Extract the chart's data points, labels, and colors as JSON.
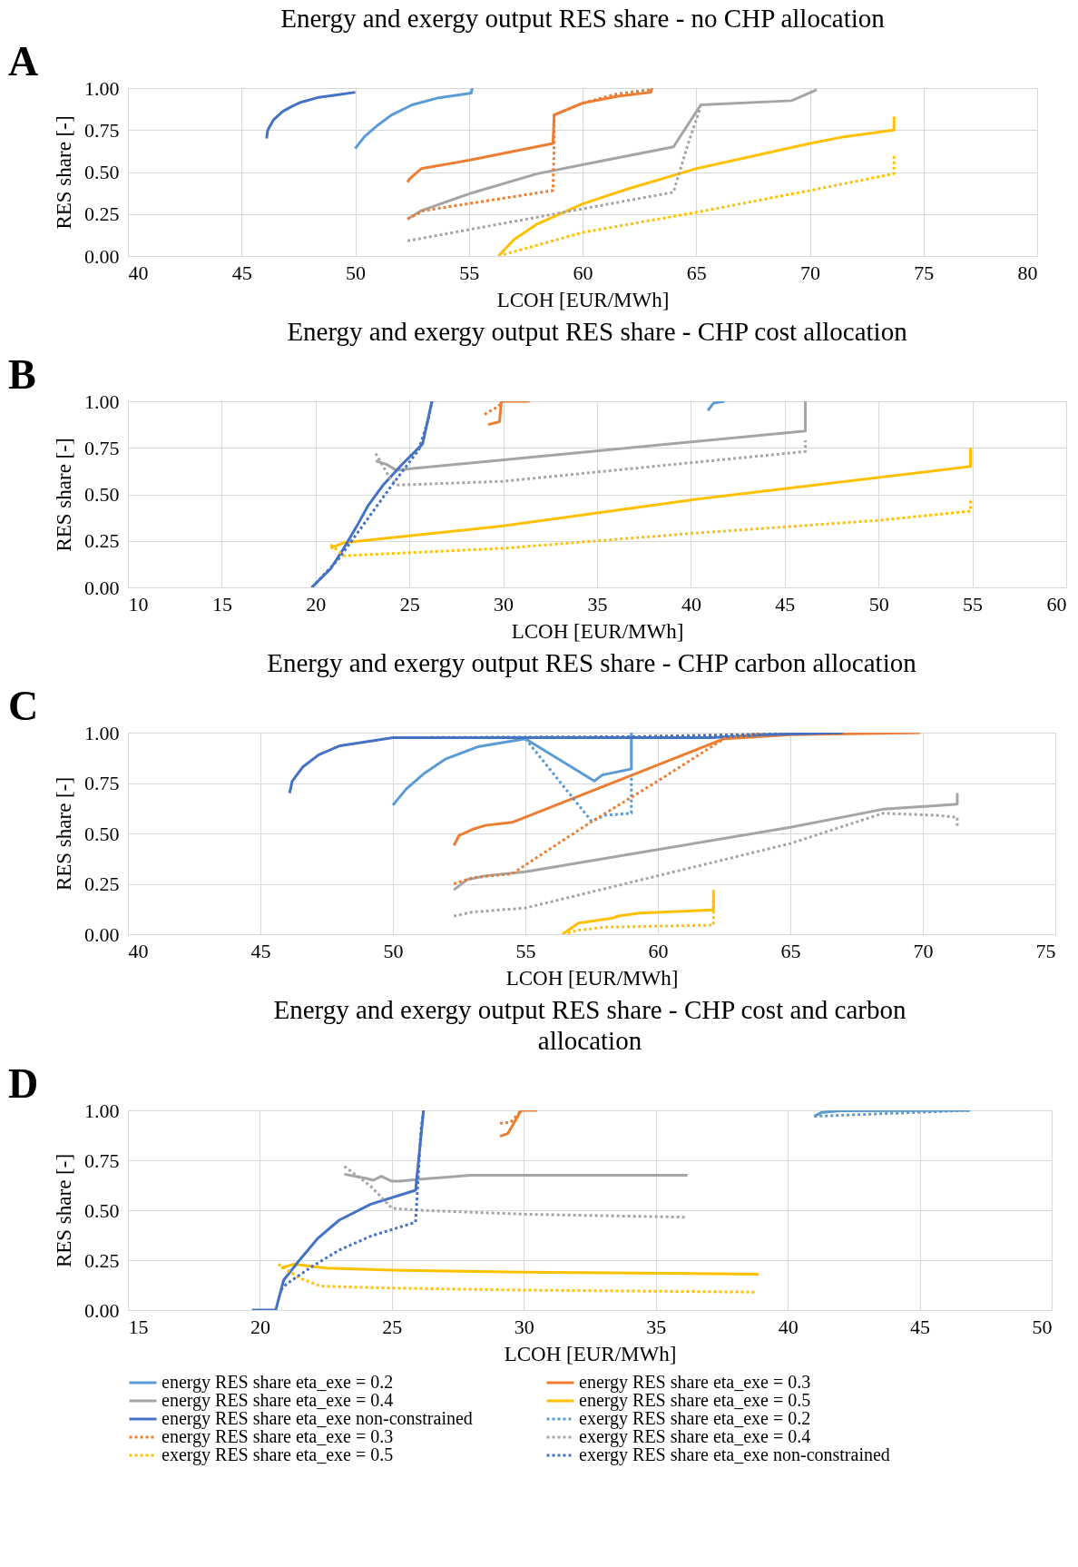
{
  "chart_data": [
    {
      "type": "line",
      "title": "Energy and exergy output RES share - no CHP allocation",
      "xlabel": "LCOH [EUR/MWh]",
      "ylabel": "RES share [-]",
      "annotations": [
        "A"
      ],
      "xlim": [
        40,
        80
      ],
      "xticks": [
        40,
        45,
        50,
        55,
        60,
        65,
        70,
        75,
        80
      ],
      "ylim": [
        0,
        1
      ],
      "yticks": [
        {
          "value": 0,
          "label": "0.00"
        },
        {
          "value": 0.25,
          "label": "0.25"
        },
        {
          "value": 0.5,
          "label": "0.50"
        },
        {
          "value": 0.75,
          "label": "0.75"
        },
        {
          "value": 1,
          "label": "1.00"
        }
      ],
      "grid": true,
      "legend": false,
      "series": [
        {
          "color": "#5b9bd5",
          "line_style": "solid",
          "x": [
            50.0,
            50.4,
            51.0,
            51.6,
            52.5,
            53.6,
            55.1,
            55.15
          ],
          "values": [
            0.64,
            0.71,
            0.78,
            0.84,
            0.9,
            0.94,
            0.97,
            1.0
          ]
        },
        {
          "color": "#ed7d31",
          "line_style": "solid",
          "x": [
            52.3,
            52.4,
            52.9,
            55,
            58.7,
            58.75,
            60,
            61.5,
            63,
            63.05
          ],
          "values": [
            0.44,
            0.46,
            0.52,
            0.57,
            0.67,
            0.84,
            0.91,
            0.95,
            0.975,
            1.0
          ]
        },
        {
          "color": "#a5a5a5",
          "line_style": "solid",
          "x": [
            52.3,
            52.9,
            55,
            58,
            61,
            64,
            65.2,
            69.2,
            70.3
          ],
          "values": [
            0.22,
            0.27,
            0.37,
            0.49,
            0.57,
            0.65,
            0.9,
            0.925,
            0.99
          ]
        },
        {
          "color": "#ffc000",
          "line_style": "solid",
          "x": [
            56.3,
            57,
            58,
            60,
            62,
            65,
            70,
            71.5,
            73.7,
            73.7
          ],
          "values": [
            0,
            0.1,
            0.19,
            0.31,
            0.4,
            0.52,
            0.67,
            0.71,
            0.75,
            0.83
          ]
        },
        {
          "color": "#4472c4",
          "line_style": "solid",
          "x": [
            46.1,
            46.15,
            46.4,
            46.8,
            47.2,
            47.6,
            48.4,
            49.2,
            50.0
          ],
          "values": [
            0.7,
            0.75,
            0.81,
            0.86,
            0.89,
            0.915,
            0.945,
            0.96,
            0.975
          ]
        },
        {
          "color": "#ed7d31",
          "line_style": "dotted",
          "x": [
            52.3,
            53,
            58.7,
            58.75,
            58.75,
            60,
            61.5,
            63,
            63.05
          ],
          "values": [
            0.22,
            0.27,
            0.39,
            0.67,
            0.84,
            0.91,
            0.965,
            0.99,
            1.0
          ]
        },
        {
          "color": "#a5a5a5",
          "line_style": "dotted",
          "x": [
            52.3,
            64,
            64.6,
            65.2
          ],
          "values": [
            0.09,
            0.38,
            0.65,
            0.89
          ]
        },
        {
          "color": "#ffc000",
          "line_style": "dotted",
          "x": [
            56.3,
            60,
            65,
            70,
            73.7,
            73.7
          ],
          "values": [
            0,
            0.14,
            0.26,
            0.39,
            0.49,
            0.61
          ]
        }
      ]
    },
    {
      "type": "line",
      "title": "Energy and exergy output RES share -  CHP cost allocation",
      "xlabel": "LCOH [EUR/MWh]",
      "ylabel": "RES share [-]",
      "annotations": [
        "B"
      ],
      "xlim": [
        10,
        60
      ],
      "xticks": [
        10,
        15,
        20,
        25,
        30,
        35,
        40,
        45,
        50,
        55,
        60
      ],
      "ylim": [
        0,
        1
      ],
      "yticks": [
        {
          "value": 0,
          "label": "0.00"
        },
        {
          "value": 0.25,
          "label": "0.25"
        },
        {
          "value": 0.5,
          "label": "0.50"
        },
        {
          "value": 0.75,
          "label": "0.75"
        },
        {
          "value": 1,
          "label": "1.00"
        }
      ],
      "grid": true,
      "legend": false,
      "series": [
        {
          "color": "#5b9bd5",
          "line_style": "solid",
          "x": [
            40.9,
            41.2,
            41.8
          ],
          "values": [
            0.95,
            0.99,
            1.0
          ]
        },
        {
          "color": "#ed7d31",
          "line_style": "solid",
          "x": [
            29.2,
            29.8,
            29.9,
            31.4
          ],
          "values": [
            0.875,
            0.89,
            1.0,
            1.0
          ]
        },
        {
          "color": "#a5a5a5",
          "line_style": "solid",
          "x": [
            23.2,
            23.8,
            24.3,
            46.1,
            46.1
          ],
          "values": [
            0.68,
            0.66,
            0.63,
            0.84,
            1.0
          ]
        },
        {
          "color": "#ffc000",
          "line_style": "solid",
          "x": [
            20.8,
            21.0,
            21.5,
            30,
            40,
            54.9,
            54.9
          ],
          "values": [
            0.21,
            0.22,
            0.24,
            0.33,
            0.47,
            0.65,
            0.75
          ]
        },
        {
          "color": "#4472c4",
          "line_style": "solid",
          "x": [
            19.8,
            20.8,
            21.5,
            22.2,
            22.8,
            23.6,
            24.6,
            25.7,
            26.2
          ],
          "values": [
            0,
            0.1,
            0.21,
            0.33,
            0.44,
            0.55,
            0.66,
            0.77,
            1.0
          ]
        },
        {
          "color": "#ed7d31",
          "line_style": "dotted",
          "x": [
            29.0,
            29.7,
            30.0
          ],
          "values": [
            0.93,
            0.97,
            1.0
          ]
        },
        {
          "color": "#a5a5a5",
          "line_style": "dotted",
          "x": [
            23.2,
            24,
            24.4,
            30,
            40,
            46.1,
            46.1
          ],
          "values": [
            0.72,
            0.58,
            0.55,
            0.57,
            0.67,
            0.73,
            0.79
          ]
        },
        {
          "color": "#ffc000",
          "line_style": "dotted",
          "x": [
            20.8,
            21.5,
            30,
            40,
            50,
            54.9,
            54.9
          ],
          "values": [
            0.23,
            0.17,
            0.21,
            0.29,
            0.36,
            0.41,
            0.47
          ]
        },
        {
          "color": "#4472c4",
          "line_style": "dotted",
          "x": [
            19.8,
            21.2,
            22.5,
            24,
            25.5,
            26.0,
            26.2
          ],
          "values": [
            0,
            0.15,
            0.33,
            0.54,
            0.74,
            0.9,
            1.0
          ]
        }
      ]
    },
    {
      "type": "line",
      "title": "Energy and exergy output RES share -  CHP carbon allocation",
      "xlabel": "LCOH [EUR/MWh]",
      "ylabel": "RES share [-]",
      "annotations": [
        "C"
      ],
      "xlim": [
        40,
        75
      ],
      "xticks": [
        40,
        45,
        50,
        55,
        60,
        65,
        70,
        75
      ],
      "ylim": [
        0,
        1
      ],
      "yticks": [
        {
          "value": 0,
          "label": "0.00"
        },
        {
          "value": 0.25,
          "label": "0.25"
        },
        {
          "value": 0.5,
          "label": "0.50"
        },
        {
          "value": 0.75,
          "label": "0.75"
        },
        {
          "value": 1,
          "label": "1.00"
        }
      ],
      "grid": true,
      "legend": false,
      "series": [
        {
          "color": "#5b9bd5",
          "line_style": "solid",
          "x": [
            50,
            50.5,
            51.2,
            52,
            53.2,
            55.0,
            57.6,
            57.9,
            59.0,
            59.0
          ],
          "values": [
            0.64,
            0.72,
            0.8,
            0.87,
            0.93,
            0.97,
            0.76,
            0.79,
            0.82,
            1.0
          ]
        },
        {
          "color": "#ed7d31",
          "line_style": "solid",
          "x": [
            52.3,
            52.5,
            53,
            53.5,
            54.5,
            62.5,
            65,
            69.9
          ],
          "values": [
            0.44,
            0.49,
            0.52,
            0.54,
            0.555,
            0.97,
            0.99,
            1.0
          ]
        },
        {
          "color": "#a5a5a5",
          "line_style": "solid",
          "x": [
            52.3,
            52.8,
            53.5,
            55,
            60,
            65,
            68.5,
            71.3,
            71.3
          ],
          "values": [
            0.22,
            0.27,
            0.29,
            0.31,
            0.42,
            0.53,
            0.62,
            0.645,
            0.7
          ]
        },
        {
          "color": "#ffc000",
          "line_style": "solid",
          "x": [
            56.4,
            57,
            58.3,
            58.5,
            59.3,
            62.1,
            62.1
          ],
          "values": [
            0,
            0.055,
            0.08,
            0.09,
            0.105,
            0.12,
            0.22
          ]
        },
        {
          "color": "#4472c4",
          "line_style": "solid",
          "x": [
            46.1,
            46.2,
            46.6,
            47.2,
            48,
            50,
            62,
            64,
            67
          ],
          "values": [
            0.7,
            0.76,
            0.83,
            0.89,
            0.935,
            0.975,
            0.975,
            0.99,
            1.0
          ]
        },
        {
          "color": "#5b9bd5",
          "line_style": "dotted",
          "x": [
            55.0,
            57.5,
            58,
            59,
            59
          ],
          "values": [
            0.97,
            0.56,
            0.59,
            0.6,
            0.79
          ]
        },
        {
          "color": "#ed7d31",
          "line_style": "dotted",
          "x": [
            52.3,
            53,
            54.5,
            57.4,
            60,
            62.5,
            64
          ],
          "values": [
            0.25,
            0.28,
            0.3,
            0.55,
            0.76,
            0.97,
            1.0
          ]
        },
        {
          "color": "#a5a5a5",
          "line_style": "dotted",
          "x": [
            52.3,
            53,
            55,
            60,
            65,
            68.5,
            70.5,
            71.3,
            71.3
          ],
          "values": [
            0.09,
            0.11,
            0.13,
            0.29,
            0.45,
            0.6,
            0.59,
            0.58,
            0.53
          ]
        },
        {
          "color": "#ffc000",
          "line_style": "dotted",
          "x": [
            56.4,
            57,
            58,
            62.1,
            62.1
          ],
          "values": [
            0,
            0.02,
            0.035,
            0.045,
            0.21
          ]
        },
        {
          "color": "#4472c4",
          "line_style": "dotted",
          "x": [
            50,
            59,
            63,
            67
          ],
          "values": [
            0.975,
            0.98,
            0.99,
            1.0
          ]
        }
      ]
    },
    {
      "type": "line",
      "title": "Energy and exergy output RES share - CHP cost and carbon allocation",
      "xlabel": "LCOH [EUR/MWh]",
      "ylabel": "RES share [-]",
      "annotations": [
        "D"
      ],
      "xlim": [
        15,
        50
      ],
      "xticks": [
        15,
        20,
        25,
        30,
        35,
        40,
        45,
        50
      ],
      "ylim": [
        0,
        1
      ],
      "yticks": [
        {
          "value": 0,
          "label": "0.00"
        },
        {
          "value": 0.25,
          "label": "0.25"
        },
        {
          "value": 0.5,
          "label": "0.50"
        },
        {
          "value": 0.75,
          "label": "0.75"
        },
        {
          "value": 1,
          "label": "1.00"
        }
      ],
      "grid": true,
      "legend": "bottom",
      "series": [
        {
          "name": "energy RES share eta_exe = 0.2",
          "color": "#5b9bd5",
          "line_style": "solid",
          "x": [
            41.0,
            41.3,
            42,
            46.9
          ],
          "values": [
            0.97,
            0.99,
            0.998,
            1.0
          ]
        },
        {
          "name": "energy RES share eta_exe = 0.3",
          "color": "#ed7d31",
          "line_style": "solid",
          "x": [
            29.1,
            29.4,
            29.9,
            30.5
          ],
          "values": [
            0.87,
            0.885,
            1.0,
            1.0
          ]
        },
        {
          "name": "energy RES share eta_exe = 0.4",
          "color": "#a5a5a5",
          "line_style": "solid",
          "x": [
            23.2,
            24,
            24.3,
            24.6,
            25,
            25.3,
            26,
            28,
            36.2
          ],
          "values": [
            0.68,
            0.66,
            0.65,
            0.67,
            0.645,
            0.645,
            0.655,
            0.675,
            0.675
          ]
        },
        {
          "name": "energy RES share eta_exe = 0.5",
          "color": "#ffc000",
          "line_style": "solid",
          "x": [
            20.8,
            21.3,
            22.5,
            25,
            30,
            38.9
          ],
          "values": [
            0.21,
            0.23,
            0.21,
            0.2,
            0.19,
            0.18
          ]
        },
        {
          "name": "energy RES share eta_exe non-constrained",
          "color": "#4472c4",
          "line_style": "solid",
          "x": [
            19.7,
            20.6,
            20.9,
            21.5,
            22.2,
            23,
            24.2,
            25.9,
            26.2
          ],
          "values": [
            0,
            0,
            0.15,
            0.25,
            0.36,
            0.45,
            0.53,
            0.6,
            1.0
          ]
        },
        {
          "name": "exergy RES share eta_exe = 0.2",
          "color": "#5b9bd5",
          "line_style": "dotted",
          "x": [
            41.0,
            46.9
          ],
          "values": [
            0.97,
            1.0
          ]
        },
        {
          "name": "energy RES share eta_exe = 0.3",
          "color": "#ed7d31",
          "line_style": "dotted",
          "x": [
            29.1,
            29.5,
            29.9
          ],
          "values": [
            0.935,
            0.94,
            1.0
          ]
        },
        {
          "name": "exergy RES share eta_exe = 0.4",
          "color": "#a5a5a5",
          "line_style": "dotted",
          "x": [
            23.2,
            24.2,
            25,
            26,
            30,
            36.1
          ],
          "values": [
            0.72,
            0.62,
            0.51,
            0.5,
            0.48,
            0.465
          ]
        },
        {
          "name": "exergy RES share eta_exe = 0.5",
          "color": "#ffc000",
          "line_style": "dotted",
          "x": [
            20.7,
            21.5,
            22.3,
            25,
            30,
            38.8
          ],
          "values": [
            0.23,
            0.16,
            0.12,
            0.11,
            0.1,
            0.09
          ]
        },
        {
          "name": "exergy RES share eta_exe non-constrained",
          "color": "#4472c4",
          "line_style": "dotted",
          "x": [
            20.8,
            21,
            22,
            23,
            24.2,
            25.9,
            26.1,
            26.2
          ],
          "values": [
            0.1,
            0.13,
            0.22,
            0.3,
            0.37,
            0.44,
            0.9,
            1.0
          ]
        }
      ]
    }
  ]
}
